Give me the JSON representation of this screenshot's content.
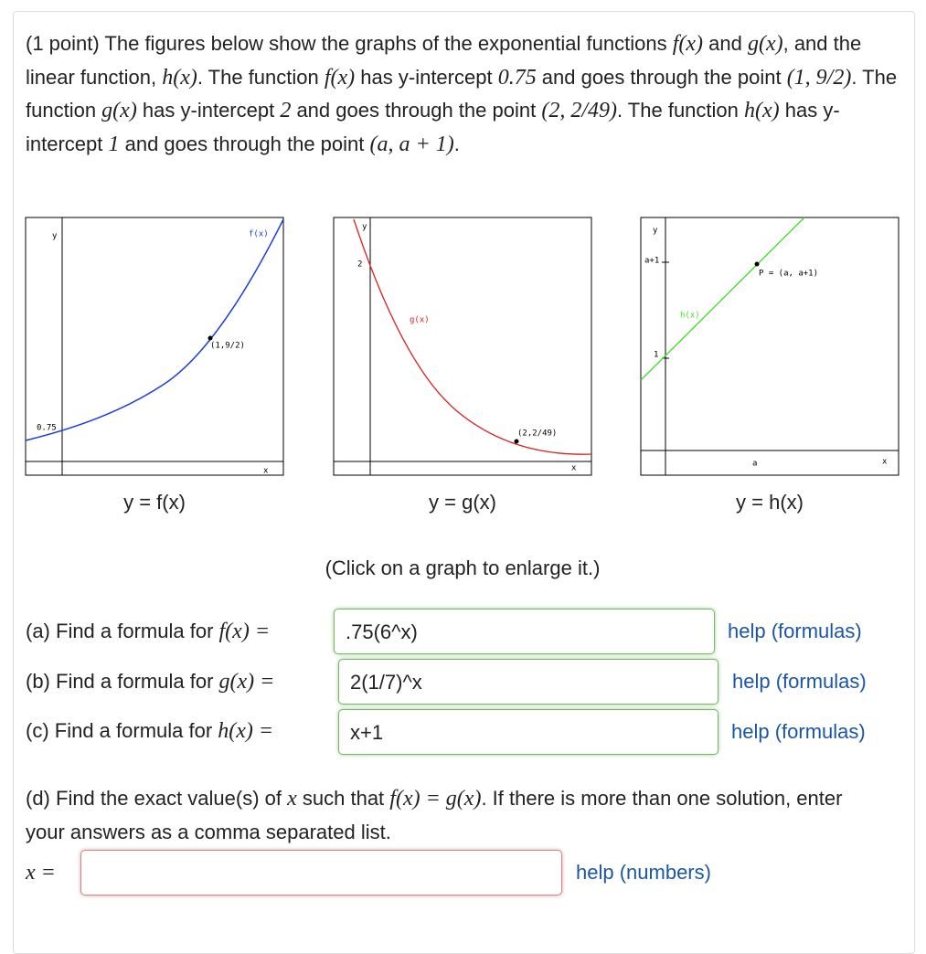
{
  "problem": {
    "intro": [
      "(1 point) The figures below show the graphs of the exponential functions ",
      "f(x)",
      " and ",
      "g(x)",
      ", and the linear function, ",
      "h(x)",
      ". The function ",
      "f(x)",
      " has y-intercept ",
      "0.75",
      " and goes through the point ",
      "(1, 9/2)",
      ". The function ",
      "g(x)",
      " has y-intercept ",
      "2",
      " and goes through the point ",
      "(2, 2/49)",
      ". The function ",
      "h(x)",
      " has y-intercept ",
      "1",
      " and goes through the point ",
      "(a, a + 1)",
      "."
    ],
    "graphs": [
      {
        "caption": "y = f(x)",
        "labels": [
          "y",
          "f(x)",
          "(1,9/2)",
          "0.75",
          "x"
        ]
      },
      {
        "caption": "y = g(x)",
        "labels": [
          "y",
          "2",
          "g(x)",
          "(2,2/49)",
          "x"
        ]
      },
      {
        "caption": "y = h(x)",
        "labels": [
          "y",
          "a+1",
          "P = (a, a+1)",
          "h(x)",
          "1",
          "a",
          "x"
        ]
      }
    ],
    "click_note": "(Click on a graph to enlarge it.)",
    "parts": [
      {
        "label": [
          "(a) Find a formula for ",
          "f(x) ="
        ],
        "answer": ".75(6^x)",
        "help": "help (formulas)"
      },
      {
        "label": [
          "(b) Find a formula for ",
          "g(x) ="
        ],
        "answer": "2(1/7)^x",
        "help": "help (formulas)"
      },
      {
        "label": [
          "(c) Find a formula for ",
          "h(x) ="
        ],
        "answer": "x+1",
        "help": "help (formulas)"
      }
    ],
    "part_d": {
      "text": [
        "(d) Find the exact value(s) of ",
        "x",
        " such that ",
        "f(x) = g(x)",
        ". If there is more than one solution, enter your answers as a comma separated list."
      ],
      "answer_label": [
        "",
        "x ="
      ],
      "help": "help (numbers)"
    }
  }
}
